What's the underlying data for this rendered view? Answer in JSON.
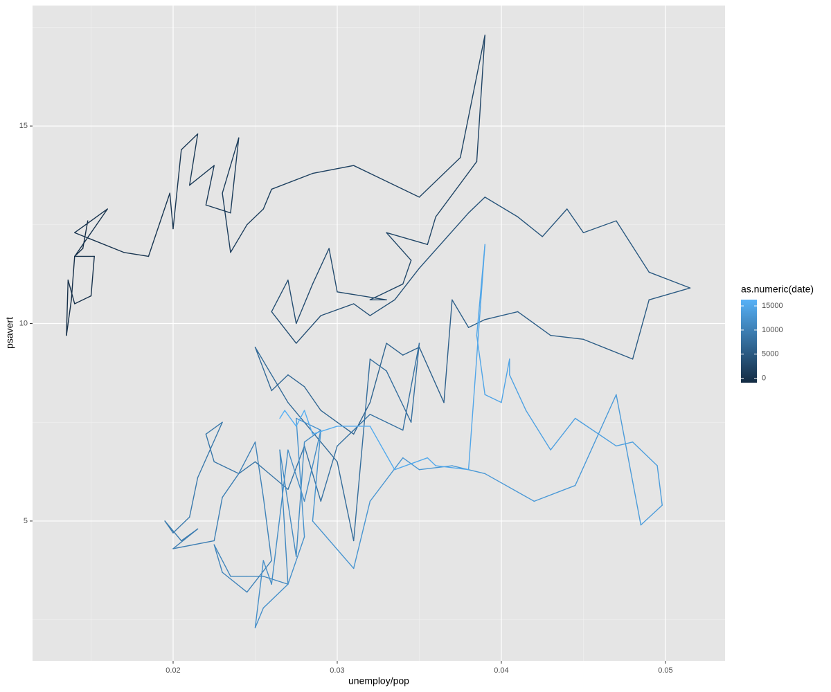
{
  "chart_data": {
    "type": "path",
    "x_label": "unemploy/pop",
    "y_label": "psavert",
    "color_label": "as.numeric(date)",
    "color_low": "#132B43",
    "color_high": "#56B1F7",
    "background": "#e5e5e5",
    "grid": true,
    "legend_position": "right",
    "xlim": [
      0.011435,
      0.05363
    ],
    "ylim": [
      1.46,
      18.05
    ],
    "xticks": [
      0.02,
      0.03,
      0.04,
      0.05
    ],
    "yticks": [
      5,
      10,
      15
    ],
    "x_minor_grid": [
      0.015,
      0.025,
      0.035,
      0.045
    ],
    "y_minor_grid": [
      2.5,
      7.5,
      12.5,
      17.5
    ],
    "colorbar_ticks": [
      0,
      5000,
      10000,
      15000
    ],
    "x": [
      0.0148,
      0.0145,
      0.014,
      0.0138,
      0.0135,
      0.0136,
      0.014,
      0.015,
      0.0152,
      0.014,
      0.016,
      0.014,
      0.017,
      0.0185,
      0.0198,
      0.02,
      0.0205,
      0.0215,
      0.021,
      0.0225,
      0.022,
      0.0235,
      0.024,
      0.023,
      0.0235,
      0.0245,
      0.0255,
      0.026,
      0.0285,
      0.031,
      0.035,
      0.0375,
      0.039,
      0.0385,
      0.036,
      0.0355,
      0.033,
      0.0345,
      0.034,
      0.032,
      0.033,
      0.03,
      0.0295,
      0.0285,
      0.0275,
      0.027,
      0.026,
      0.0275,
      0.029,
      0.031,
      0.032,
      0.0335,
      0.035,
      0.038,
      0.039,
      0.041,
      0.0425,
      0.044,
      0.045,
      0.047,
      0.049,
      0.0515,
      0.049,
      0.048,
      0.045,
      0.043,
      0.041,
      0.039,
      0.038,
      0.037,
      0.0365,
      0.035,
      0.034,
      0.033,
      0.032,
      0.031,
      0.03,
      0.029,
      0.028,
      0.027,
      0.026,
      0.025,
      0.027,
      0.028,
      0.03,
      0.031,
      0.032,
      0.033,
      0.0345,
      0.035,
      0.034,
      0.032,
      0.03,
      0.029,
      0.028,
      0.027,
      0.025,
      0.024,
      0.0225,
      0.022,
      0.023,
      0.0215,
      0.021,
      0.02,
      0.0195,
      0.0205,
      0.0215,
      0.02,
      0.0225,
      0.023,
      0.024,
      0.025,
      0.0255,
      0.026,
      0.0245,
      0.023,
      0.0225,
      0.0235,
      0.0245,
      0.0255,
      0.027,
      0.0265,
      0.0275,
      0.028,
      0.029,
      0.028,
      0.027,
      0.026,
      0.0255,
      0.025,
      0.0255,
      0.027,
      0.028,
      0.0275,
      0.029,
      0.0285,
      0.031,
      0.032,
      0.034,
      0.035,
      0.037,
      0.039,
      0.042,
      0.0445,
      0.047,
      0.048,
      0.0485,
      0.0498,
      0.0495,
      0.048,
      0.047,
      0.0445,
      0.043,
      0.0415,
      0.0405,
      0.0405,
      0.04,
      0.039,
      0.0385,
      0.039,
      0.038,
      0.036,
      0.0355,
      0.0335,
      0.032,
      0.03,
      0.0285,
      0.028,
      0.0275,
      0.0268,
      0.0265
    ],
    "y": [
      12.6,
      11.9,
      11.7,
      10.6,
      9.7,
      11.1,
      10.5,
      10.7,
      11.7,
      11.7,
      12.9,
      12.3,
      11.8,
      11.7,
      13.3,
      12.4,
      14.4,
      14.8,
      13.5,
      14.0,
      13.0,
      12.8,
      14.7,
      13.3,
      11.8,
      12.5,
      12.9,
      13.4,
      13.8,
      14.0,
      13.2,
      14.2,
      17.3,
      14.1,
      12.7,
      12.0,
      12.3,
      11.6,
      11.0,
      10.6,
      10.6,
      10.8,
      11.9,
      11.0,
      10.0,
      11.1,
      10.3,
      9.5,
      10.2,
      10.5,
      10.2,
      10.6,
      11.4,
      12.8,
      13.2,
      12.7,
      12.2,
      12.9,
      12.3,
      12.6,
      11.3,
      10.9,
      10.6,
      9.1,
      9.6,
      9.7,
      10.3,
      10.1,
      9.9,
      10.6,
      8.0,
      9.4,
      9.2,
      9.5,
      8.0,
      7.2,
      7.5,
      7.8,
      8.4,
      8.7,
      8.3,
      9.4,
      8.0,
      7.5,
      6.5,
      4.5,
      9.1,
      8.8,
      7.5,
      9.5,
      7.3,
      7.7,
      6.9,
      5.5,
      6.9,
      5.8,
      6.5,
      6.2,
      6.5,
      7.2,
      7.5,
      6.1,
      5.1,
      4.7,
      5.0,
      4.5,
      4.8,
      4.3,
      4.5,
      5.6,
      6.2,
      7.0,
      5.6,
      4.0,
      3.2,
      3.7,
      4.4,
      3.6,
      3.6,
      3.6,
      3.4,
      6.8,
      4.1,
      7.0,
      7.3,
      5.5,
      6.8,
      3.4,
      4.0,
      2.3,
      2.8,
      3.4,
      4.6,
      7.6,
      7.3,
      5.0,
      3.8,
      5.5,
      6.6,
      6.3,
      6.4,
      6.2,
      5.5,
      5.9,
      8.2,
      6.0,
      4.9,
      5.4,
      6.4,
      7.0,
      6.9,
      7.6,
      6.8,
      7.8,
      8.7,
      9.1,
      8.0,
      8.2,
      9.7,
      12.0,
      6.3,
      6.4,
      6.6,
      6.3,
      7.4,
      7.4,
      7.2,
      7.8,
      7.4,
      7.8,
      7.6
    ],
    "color_values": [
      -915,
      -800,
      -700,
      -600,
      -500,
      -400,
      -300,
      -200,
      -100,
      0,
      100,
      200,
      300,
      400,
      500,
      600,
      700,
      800,
      900,
      1000,
      1100,
      1200,
      1300,
      1400,
      1500,
      1600,
      1700,
      1800,
      1900,
      2000,
      2100,
      2200,
      2300,
      2350,
      2400,
      2500,
      2600,
      2700,
      2800,
      2900,
      3000,
      3100,
      3200,
      3300,
      3400,
      3500,
      3600,
      3700,
      3800,
      3900,
      4000,
      4100,
      4200,
      4300,
      4400,
      4500,
      4600,
      4700,
      4800,
      4900,
      5000,
      5100,
      5200,
      5300,
      5400,
      5500,
      5600,
      5700,
      5800,
      5900,
      6000,
      6100,
      6200,
      6300,
      6400,
      6500,
      6600,
      6700,
      6800,
      6900,
      7000,
      7100,
      7200,
      7300,
      7400,
      7500,
      7600,
      7700,
      7800,
      7900,
      8000,
      8100,
      8200,
      8300,
      8400,
      8500,
      8600,
      8700,
      8800,
      8900,
      9000,
      9100,
      9200,
      9300,
      9400,
      9500,
      9600,
      9700,
      9800,
      9900,
      10000,
      10100,
      10200,
      10300,
      10400,
      10500,
      10600,
      10700,
      10800,
      10900,
      11000,
      11100,
      11200,
      11300,
      11400,
      11500,
      11600,
      11700,
      11800,
      11900,
      12000,
      12100,
      12200,
      12300,
      12400,
      12500,
      12600,
      12700,
      12800,
      12900,
      13000,
      13100,
      13200,
      13300,
      13400,
      13500,
      13600,
      13700,
      13800,
      13900,
      14000,
      14100,
      14200,
      14300,
      14400,
      14500,
      14600,
      14700,
      14800,
      14900,
      15000,
      15100,
      15200,
      15300,
      15400,
      15500,
      15600,
      15700,
      15800,
      16000,
      16300
    ]
  }
}
